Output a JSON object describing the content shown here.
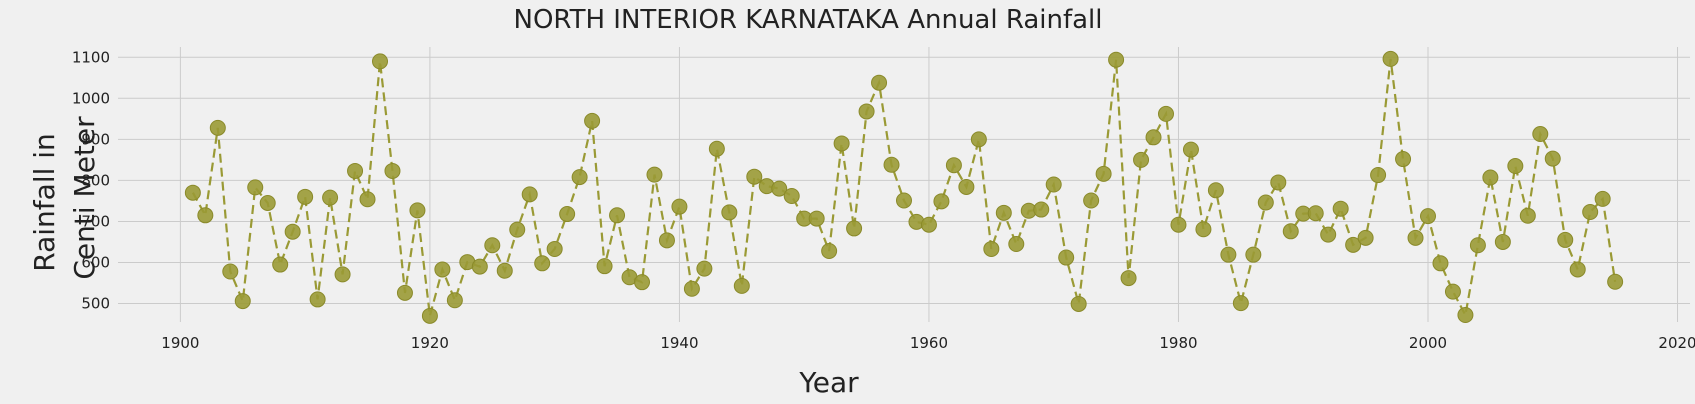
{
  "chart_data": {
    "type": "line",
    "title": "NORTH INTERIOR KARNATAKA Annual Rainfall",
    "xlabel": "Year",
    "ylabel_lines": [
      "Rainfall in",
      "Centi Meter"
    ],
    "xlim": [
      1895,
      2021
    ],
    "ylim": [
      455,
      1125
    ],
    "xticks": [
      1900,
      1920,
      1940,
      1960,
      1980,
      2000,
      2020
    ],
    "yticks": [
      500,
      600,
      700,
      800,
      900,
      1000,
      1100
    ],
    "grid": true,
    "marker_color": "#9a9a35",
    "line_style": "dashed",
    "series": [
      {
        "x": [
          1901,
          1902,
          1903,
          1904,
          1905,
          1906,
          1907,
          1908,
          1909,
          1910,
          1911,
          1912,
          1913,
          1914,
          1915,
          1916,
          1917,
          1918,
          1919,
          1920,
          1921,
          1922,
          1923,
          1924,
          1925,
          1926,
          1927,
          1928,
          1929,
          1930,
          1931,
          1932,
          1933,
          1934,
          1935,
          1936,
          1937,
          1938,
          1939,
          1940,
          1941,
          1942,
          1943,
          1944,
          1945,
          1946,
          1947,
          1948,
          1949,
          1950,
          1951,
          1952,
          1953,
          1954,
          1955,
          1956,
          1957,
          1958,
          1959,
          1960,
          1961,
          1962,
          1963,
          1964,
          1965,
          1966,
          1967,
          1968,
          1969,
          1970,
          1971,
          1972,
          1973,
          1974,
          1975,
          1976,
          1977,
          1978,
          1979,
          1980,
          1981,
          1982,
          1983,
          1984,
          1985,
          1986,
          1987,
          1988,
          1989,
          1990,
          1991,
          1992,
          1993,
          1994,
          1995,
          1996,
          1997,
          1998,
          1999,
          2000,
          2001,
          2002,
          2003,
          2004,
          2005,
          2006,
          2007,
          2008,
          2009,
          2010,
          2011,
          2012,
          2013,
          2014,
          2015
        ],
        "y": [
          770,
          715,
          928,
          578,
          506,
          783,
          745,
          595,
          675,
          760,
          510,
          758,
          571,
          823,
          754,
          1090,
          823,
          526,
          727,
          470,
          583,
          508,
          601,
          590,
          642,
          580,
          680,
          766,
          598,
          633,
          718,
          808,
          945,
          591,
          715,
          564,
          552,
          814,
          654,
          736,
          536,
          585,
          877,
          722,
          543,
          809,
          786,
          780,
          762,
          707,
          707,
          628,
          890,
          683,
          968,
          1038,
          838,
          751,
          699,
          692,
          749,
          837,
          784,
          900,
          633,
          721,
          645,
          726,
          729,
          790,
          612,
          499,
          751,
          816,
          1094,
          562,
          850,
          905,
          962,
          692,
          875,
          681,
          776,
          619,
          501,
          619,
          746,
          795,
          676,
          719,
          720,
          668,
          731,
          643,
          660,
          813,
          1096,
          852,
          660,
          713,
          598,
          529,
          472,
          642,
          807,
          650,
          835,
          714,
          913,
          853,
          655,
          583,
          723,
          755,
          553
        ]
      }
    ]
  }
}
